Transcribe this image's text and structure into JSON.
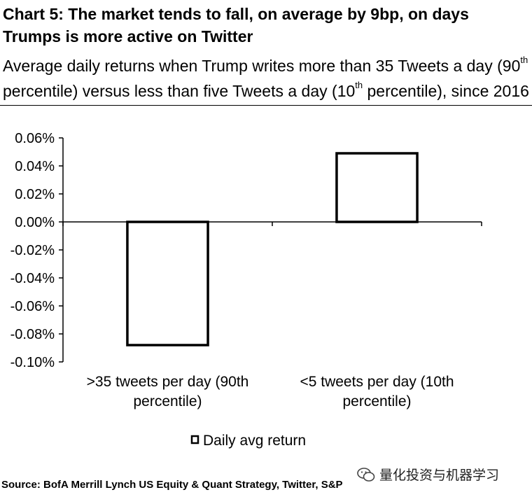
{
  "header": {
    "title": "Chart 5: The market tends to fall, on average by 9bp, on days Trumps is more active on Twitter",
    "subtitle_part1": "Average daily returns when Trump writes more than 35 Tweets a day (90",
    "subtitle_sup1": "th",
    "subtitle_part2": "percentile) versus less than five Tweets a day (10",
    "subtitle_sup2": "th",
    "subtitle_part3": " percentile), since 2016"
  },
  "footer": {
    "source": "Source: BofA Merrill Lynch US Equity & Quant Strategy, Twitter, S&P",
    "watermark": "量化投资与机器学习"
  },
  "chart_data": {
    "type": "bar",
    "categories": [
      [
        "&gt;35 tweets per day (90th",
        "percentile)"
      ],
      [
        "&lt;5 tweets per day (10th",
        "percentile)"
      ]
    ],
    "series": [
      {
        "name": "Daily avg return",
        "values": [
          -0.088,
          0.049
        ]
      }
    ],
    "ylim": [
      -0.1,
      0.06
    ],
    "yticks": [
      0.06,
      0.04,
      0.02,
      0.0,
      -0.02,
      -0.04,
      -0.06,
      -0.08,
      -0.1
    ],
    "ytick_labels": [
      "0.06%",
      "0.04%",
      "0.02%",
      "0.00%",
      "-0.02%",
      "-0.04%",
      "-0.06%",
      "-0.08%",
      "-0.10%"
    ],
    "value_unit": "%",
    "grid": false,
    "legend": "bottom-center",
    "colors": {
      "bar_fill": "#ffffff",
      "bar_stroke": "#000000",
      "axis": "#000000"
    }
  }
}
